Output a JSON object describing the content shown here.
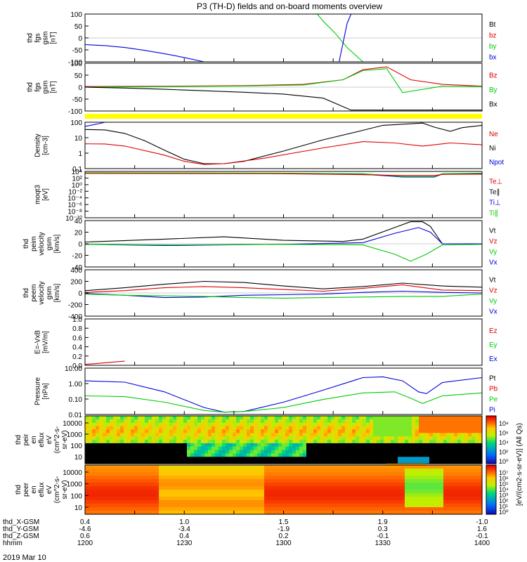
{
  "title": "P3 (TH-D) fields and on-board moments overview",
  "date": "2019 Mar 10",
  "colors": {
    "black": "#000000",
    "red": "#dd0000",
    "green": "#00cc00",
    "blue": "#0000dd",
    "yellow": "#ffff00"
  },
  "chart_data": [
    {
      "type": "line",
      "ylabel": [
        "thd",
        "fgs",
        "gsm",
        "[nT]"
      ],
      "ylim": [
        -100,
        100
      ],
      "ticks": [
        "100",
        "50",
        "0",
        "-50",
        "-100"
      ],
      "legend": [
        "Bt",
        "bz",
        "by",
        "bx"
      ],
      "series": [
        {
          "name": "bx",
          "color": "blue",
          "x": [
            0,
            0.05,
            0.1,
            0.15,
            0.2,
            0.25,
            0.3
          ],
          "y": [
            -28,
            -32,
            -40,
            -52,
            -66,
            -82,
            -100
          ]
        },
        {
          "name": "by",
          "color": "green",
          "x": [
            0.585,
            0.6,
            0.63,
            0.66,
            0.7
          ],
          "y": [
            100,
            70,
            20,
            -40,
            -100
          ]
        },
        {
          "name": "bx-2",
          "color": "blue",
          "x": [
            0.64,
            0.65,
            0.66,
            0.67
          ],
          "y": [
            -100,
            -20,
            60,
            100
          ]
        }
      ]
    },
    {
      "type": "line",
      "ylabel": [
        "thd",
        "fgs",
        "gsm",
        "[nT]"
      ],
      "ylim": [
        -130,
        130
      ],
      "ticks": [
        "100",
        "50",
        "0",
        "-50",
        "-100"
      ],
      "legend": [
        "Bz",
        "By",
        "Bx"
      ],
      "series": [
        {
          "name": "Bz",
          "color": "red",
          "x": [
            0,
            0.2,
            0.4,
            0.55,
            0.65,
            0.7,
            0.76,
            0.82,
            0.9,
            1
          ],
          "y": [
            3,
            5,
            8,
            15,
            40,
            95,
            110,
            40,
            15,
            5
          ]
        },
        {
          "name": "By",
          "color": "green",
          "x": [
            0,
            0.2,
            0.4,
            0.55,
            0.65,
            0.7,
            0.76,
            0.8,
            0.9,
            1
          ],
          "y": [
            0,
            3,
            6,
            12,
            40,
            90,
            100,
            -30,
            5,
            3
          ]
        },
        {
          "name": "Bx",
          "color": "black",
          "x": [
            0,
            0.1,
            0.2,
            0.3,
            0.4,
            0.5,
            0.6,
            0.67,
            0.7,
            0.8,
            1
          ],
          "y": [
            0,
            -5,
            -12,
            -20,
            -28,
            -38,
            -60,
            -125,
            -125,
            -125,
            -125
          ]
        }
      ]
    },
    {
      "type": "line",
      "ylabel": [
        "Density",
        "[cm-3]"
      ],
      "log": true,
      "ylim": [
        0.01,
        300
      ],
      "ticks": [
        "100",
        "10",
        "1",
        "0.1"
      ],
      "legend": [
        "Ne",
        "Ni",
        "Npot"
      ],
      "series": [
        {
          "name": "Ni",
          "color": "black",
          "x": [
            0,
            0.05,
            0.1,
            0.15,
            0.2,
            0.25,
            0.3,
            0.35,
            0.4,
            0.5,
            0.6,
            0.7,
            0.75,
            0.85,
            0.88,
            0.92,
            0.95,
            1
          ],
          "y": [
            60,
            55,
            25,
            5,
            0.6,
            0.08,
            0.03,
            0.03,
            0.05,
            0.5,
            6,
            50,
            150,
            250,
            100,
            40,
            90,
            150
          ]
        },
        {
          "name": "Ne",
          "color": "red",
          "x": [
            0,
            0.05,
            0.1,
            0.2,
            0.25,
            0.3,
            0.35,
            0.45,
            0.6,
            0.7,
            0.78,
            0.85,
            0.92,
            1
          ],
          "y": [
            2.5,
            2.4,
            1.5,
            0.2,
            0.05,
            0.025,
            0.03,
            0.1,
            1,
            4,
            3,
            1.5,
            3,
            2
          ]
        },
        {
          "name": "Npot",
          "color": "blue",
          "x": [
            0,
            0.03,
            0.05
          ],
          "y": [
            120,
            200,
            300
          ]
        }
      ]
    },
    {
      "type": "line",
      "ylabel": [
        "moqt3",
        "[eV]"
      ],
      "log": true,
      "ylim": [
        1e-10,
        10000.0
      ],
      "ticks": [
        "10⁴",
        "10²",
        "10⁰",
        "10⁻²",
        "10⁻⁴",
        "10⁻⁶",
        "10⁻⁸",
        "10⁻¹⁰"
      ],
      "legend": [
        "Te⊥",
        "Te∥",
        "Ti⊥",
        "Ti∥"
      ],
      "series": [
        {
          "name": "Ti⊥",
          "color": "blue",
          "x": [
            0,
            0.5,
            0.7,
            0.8,
            0.88,
            0.9,
            1
          ],
          "y": [
            3000,
            2500,
            1500,
            200,
            200,
            1500,
            2000
          ]
        },
        {
          "name": "Ti∥",
          "color": "green",
          "x": [
            0,
            0.5,
            0.7,
            0.8,
            0.88,
            0.9,
            1
          ],
          "y": [
            4000,
            3000,
            2000,
            300,
            300,
            2000,
            3000
          ]
        },
        {
          "name": "Te⊥",
          "color": "red",
          "x": [
            0,
            0.5,
            0.7,
            0.8,
            0.88,
            0.9,
            1
          ],
          "y": [
            2500,
            2000,
            1000,
            600,
            600,
            1200,
            1500
          ]
        }
      ]
    },
    {
      "type": "line",
      "ylabel": [
        "thd",
        "peim",
        "velocity",
        "gsm",
        "[km/s]"
      ],
      "ylim": [
        -40,
        40
      ],
      "ticks": [
        "40",
        "20",
        "0",
        "-20",
        "-40"
      ],
      "legend": [
        "Vt",
        "Vz",
        "Vy",
        "Vx"
      ],
      "series": [
        {
          "name": "Vt",
          "color": "black",
          "x": [
            0,
            0.2,
            0.35,
            0.5,
            0.65,
            0.7,
            0.78,
            0.82,
            0.85,
            0.87,
            0.9,
            1
          ],
          "y": [
            3,
            8,
            12,
            6,
            4,
            8,
            28,
            38,
            38,
            30,
            0,
            0
          ]
        },
        {
          "name": "Vx",
          "color": "blue",
          "x": [
            0,
            0.2,
            0.35,
            0.5,
            0.7,
            0.78,
            0.84,
            0.87,
            0.9,
            1
          ],
          "y": [
            -1,
            -3,
            -2,
            -1,
            2,
            18,
            28,
            20,
            0,
            0
          ]
        },
        {
          "name": "Vy",
          "color": "green",
          "x": [
            0,
            0.2,
            0.5,
            0.7,
            0.78,
            0.82,
            0.86,
            0.9,
            1
          ],
          "y": [
            -1,
            -2,
            -1,
            -2,
            -18,
            -30,
            -18,
            -2,
            -1
          ]
        }
      ]
    },
    {
      "type": "line",
      "ylabel": [
        "thd",
        "peem",
        "velocity",
        "gsm",
        "[km/s]"
      ],
      "ylim": [
        -400,
        400
      ],
      "ticks": [
        "400",
        "200",
        "0",
        "-200",
        "-400"
      ],
      "legend": [
        "Vt",
        "Vz",
        "Vy",
        "Vx"
      ],
      "series": [
        {
          "name": "Vt",
          "color": "black",
          "x": [
            0,
            0.1,
            0.2,
            0.3,
            0.4,
            0.5,
            0.6,
            0.7,
            0.8,
            0.9,
            1
          ],
          "y": [
            40,
            90,
            150,
            200,
            180,
            120,
            70,
            110,
            170,
            120,
            100
          ]
        },
        {
          "name": "Vz",
          "color": "red",
          "x": [
            0,
            0.1,
            0.2,
            0.3,
            0.4,
            0.5,
            0.6,
            0.7,
            0.8,
            0.9,
            1
          ],
          "y": [
            10,
            40,
            90,
            110,
            90,
            60,
            30,
            80,
            140,
            50,
            40
          ]
        },
        {
          "name": "Vx",
          "color": "blue",
          "x": [
            0,
            0.1,
            0.2,
            0.3,
            0.4,
            0.5,
            0.6,
            0.7,
            0.8,
            0.9,
            1
          ],
          "y": [
            -10,
            -40,
            -80,
            -70,
            -40,
            -30,
            -20,
            10,
            30,
            10,
            0
          ]
        },
        {
          "name": "Vy",
          "color": "green",
          "x": [
            0,
            0.1,
            0.2,
            0.3,
            0.4,
            0.5,
            0.6,
            0.7,
            0.8,
            0.9,
            1
          ],
          "y": [
            -20,
            -40,
            -50,
            -60,
            -80,
            -90,
            -80,
            -70,
            -60,
            -60,
            -20
          ]
        }
      ]
    },
    {
      "type": "line",
      "ylabel": [
        "E=-VxB",
        "[mV/m]"
      ],
      "ylim": [
        0,
        1
      ],
      "ticks": [
        "1.0",
        "0.8",
        "0.6",
        "0.4",
        "0.2",
        "0.0"
      ],
      "legend": [
        "Ez",
        "Ey",
        "Ex"
      ],
      "series": [
        {
          "name": "Ez",
          "color": "red",
          "x": [
            0,
            0.03,
            0.07,
            0.1
          ],
          "y": [
            0.02,
            0.04,
            0.07,
            0.09
          ]
        }
      ]
    },
    {
      "type": "line",
      "ylabel": [
        "Pressure",
        "[nPa]"
      ],
      "log": true,
      "ylim": [
        0.006,
        18
      ],
      "ticks": [
        "10.00",
        "1.00",
        "0.10",
        "0.01"
      ],
      "legend": [
        "Pt",
        "Pb",
        "Pe",
        "Pi"
      ],
      "series": [
        {
          "name": "Pi",
          "color": "blue",
          "x": [
            0,
            0.1,
            0.2,
            0.3,
            0.35,
            0.4,
            0.5,
            0.6,
            0.7,
            0.75,
            0.8,
            0.84,
            0.86,
            0.9,
            1
          ],
          "y": [
            2,
            1.6,
            0.3,
            0.02,
            0.009,
            0.01,
            0.05,
            0.4,
            3.5,
            4,
            2,
            0.3,
            0.22,
            1.5,
            3.5
          ]
        },
        {
          "name": "Pe",
          "color": "green",
          "x": [
            0,
            0.1,
            0.2,
            0.3,
            0.35,
            0.4,
            0.5,
            0.6,
            0.7,
            0.78,
            0.82,
            0.85,
            0.9,
            1
          ],
          "y": [
            0.15,
            0.13,
            0.05,
            0.012,
            0.009,
            0.01,
            0.02,
            0.08,
            0.25,
            0.3,
            0.1,
            0.04,
            0.15,
            0.25
          ]
        }
      ]
    },
    {
      "type": "heatmap",
      "ylabel": [
        "thd",
        "peir",
        "en",
        "eflux",
        "eV",
        "(cm^2-s-",
        "sr-eV)"
      ],
      "ticks": [
        "10000",
        "1000",
        "100",
        "10"
      ],
      "colorbar": [
        "10⁸",
        "10⁶",
        "10⁴",
        "10²",
        "10⁰"
      ]
    },
    {
      "type": "heatmap",
      "ylabel": [
        "thd",
        "peer",
        "en",
        "eflux",
        "eV",
        "(cm^2-s-",
        "sr-eV)"
      ],
      "ticks": [
        "10000",
        "1000",
        "100",
        "10"
      ],
      "colorbar": [
        "10⁷",
        "10⁶",
        "10⁵",
        "10⁴",
        "10³",
        "10²",
        "10¹",
        "10⁰"
      ],
      "colorbar_label": "[eV/(cm2-s-sr-eV)] (All Qs)"
    }
  ],
  "xaxis": {
    "rows": [
      {
        "label": "thd_X-GSM",
        "values": [
          "0.4",
          "1.0",
          "1.5",
          "1.9",
          "-1.0"
        ]
      },
      {
        "label": "thd_Y-GSM",
        "values": [
          "-4.6",
          "-3.4",
          "-1.9",
          "0.3",
          "1.6"
        ]
      },
      {
        "label": "thd_Z-GSM",
        "values": [
          "0.6",
          "0.4",
          "0.2",
          "-0.1",
          "-0.1"
        ]
      },
      {
        "label": "hhmm",
        "values": [
          "1200",
          "1230",
          "1300",
          "1330",
          "1400"
        ]
      }
    ]
  }
}
